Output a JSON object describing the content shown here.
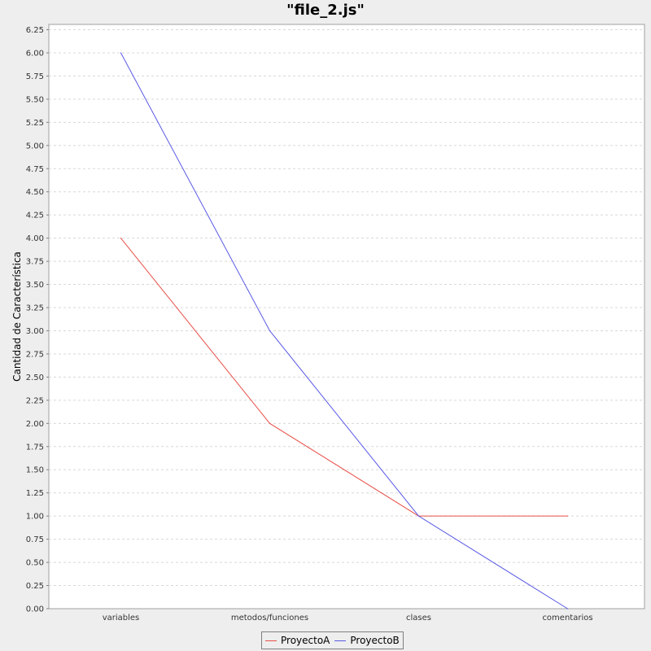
{
  "chart_data": {
    "type": "line",
    "title": "\"file_2.js\"",
    "xlabel": "",
    "ylabel": "Cantidad de Característica",
    "categories": [
      "variables",
      "metodos/funciones",
      "clases",
      "comentarios"
    ],
    "series": [
      {
        "name": "ProyectoA",
        "color": "#e8504a",
        "values": [
          4,
          2,
          1,
          1
        ]
      },
      {
        "name": "ProyectoB",
        "color": "#5a5ae6",
        "values": [
          6,
          3,
          1,
          0
        ]
      }
    ],
    "ylim": [
      0,
      6.25
    ],
    "yticks": [
      "0.00",
      "0.25",
      "0.50",
      "0.75",
      "1.00",
      "1.25",
      "1.50",
      "1.75",
      "2.00",
      "2.25",
      "2.50",
      "2.75",
      "3.00",
      "3.25",
      "3.50",
      "3.75",
      "4.00",
      "4.25",
      "4.50",
      "4.75",
      "5.00",
      "5.25",
      "5.50",
      "5.75",
      "6.00",
      "6.25"
    ],
    "grid": true,
    "legend_position": "bottom"
  }
}
